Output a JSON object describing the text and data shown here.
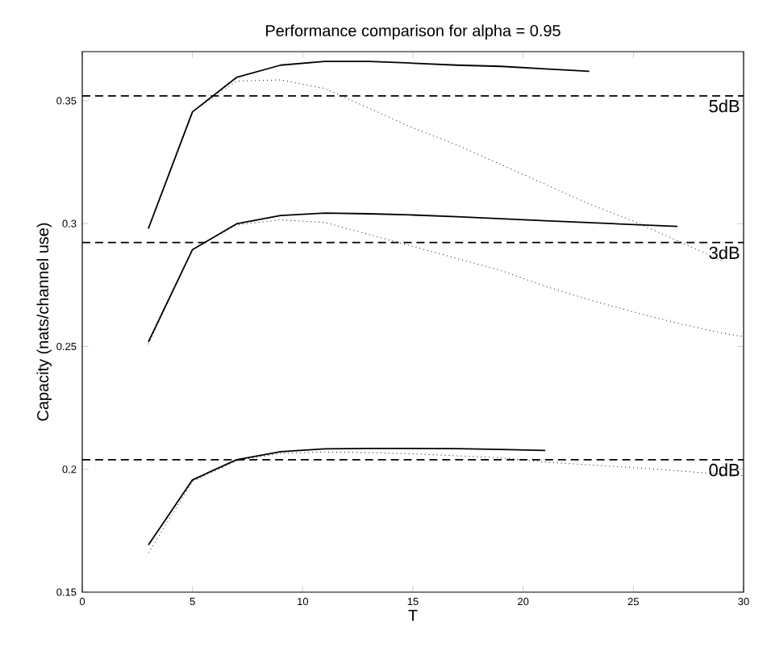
{
  "chart_data": {
    "type": "line",
    "title": "Performance comparison for alpha = 0.95",
    "xlabel": "T",
    "ylabel": "Capacity (nats/channel use)",
    "xlim": [
      0,
      30
    ],
    "ylim": [
      0.15,
      0.37
    ],
    "xticks": [
      0,
      5,
      10,
      15,
      20,
      25,
      30
    ],
    "yticks": [
      0.15,
      0.2,
      0.25,
      0.3,
      0.35
    ],
    "grid": false,
    "marker": "none",
    "series": [
      {
        "color": "#000000",
        "line_style": "solid",
        "x": [
          3,
          5,
          7,
          9,
          11,
          13,
          15,
          17,
          19,
          21,
          23
        ],
        "values": [
          0.298,
          0.3455,
          0.3595,
          0.3645,
          0.366,
          0.366,
          0.3653,
          0.3645,
          0.364,
          0.363,
          0.362
        ]
      },
      {
        "color": "#000000",
        "line_style": "dotted",
        "x": [
          3,
          5,
          7,
          9,
          11,
          13,
          15,
          17,
          19,
          21,
          23,
          25,
          27,
          29
        ],
        "values": [
          0.298,
          0.3455,
          0.358,
          0.3585,
          0.355,
          0.347,
          0.339,
          0.332,
          0.324,
          0.316,
          0.308,
          0.301,
          0.293,
          0.285
        ]
      },
      {
        "color": "#000000",
        "line_style": "solid",
        "x": [
          3,
          5,
          7,
          9,
          11,
          13,
          15,
          17,
          19,
          21,
          23,
          25,
          27
        ],
        "values": [
          0.2518,
          0.2894,
          0.2999,
          0.3033,
          0.3043,
          0.304,
          0.3035,
          0.3028,
          0.302,
          0.3012,
          0.3004,
          0.2996,
          0.2989
        ]
      },
      {
        "color": "#000000",
        "line_style": "dotted",
        "x": [
          3,
          5,
          7,
          9,
          11,
          13,
          15,
          17,
          19,
          21,
          23,
          25,
          27,
          29,
          30
        ],
        "values": [
          0.251,
          0.2894,
          0.2995,
          0.3015,
          0.3005,
          0.2956,
          0.2907,
          0.2858,
          0.2809,
          0.2745,
          0.269,
          0.264,
          0.2595,
          0.2555,
          0.254
        ]
      },
      {
        "color": "#000000",
        "line_style": "solid",
        "x": [
          3,
          5,
          7,
          9,
          11,
          13,
          15,
          17,
          19,
          21
        ],
        "values": [
          0.1692,
          0.1957,
          0.2039,
          0.2072,
          0.2083,
          0.2085,
          0.2085,
          0.2084,
          0.2081,
          0.2077
        ]
      },
      {
        "color": "#000000",
        "line_style": "dotted",
        "x": [
          3,
          5,
          7,
          9,
          11,
          13,
          15,
          17,
          19,
          21,
          23,
          25,
          27,
          29,
          30
        ],
        "values": [
          0.166,
          0.195,
          0.2035,
          0.2065,
          0.207,
          0.2068,
          0.2063,
          0.2055,
          0.2047,
          0.2029,
          0.2018,
          0.2007,
          0.1994,
          0.198,
          0.1974
        ]
      }
    ],
    "ref_lines": [
      {
        "axis": "y",
        "value": 0.352,
        "label": "5dB",
        "color": "#000000",
        "line_style": "dashed"
      },
      {
        "axis": "y",
        "value": 0.2923,
        "label": "3dB",
        "color": "#000000",
        "line_style": "dashed"
      },
      {
        "axis": "y",
        "value": 0.2039,
        "label": "0dB",
        "color": "#000000",
        "line_style": "dashed"
      }
    ]
  }
}
